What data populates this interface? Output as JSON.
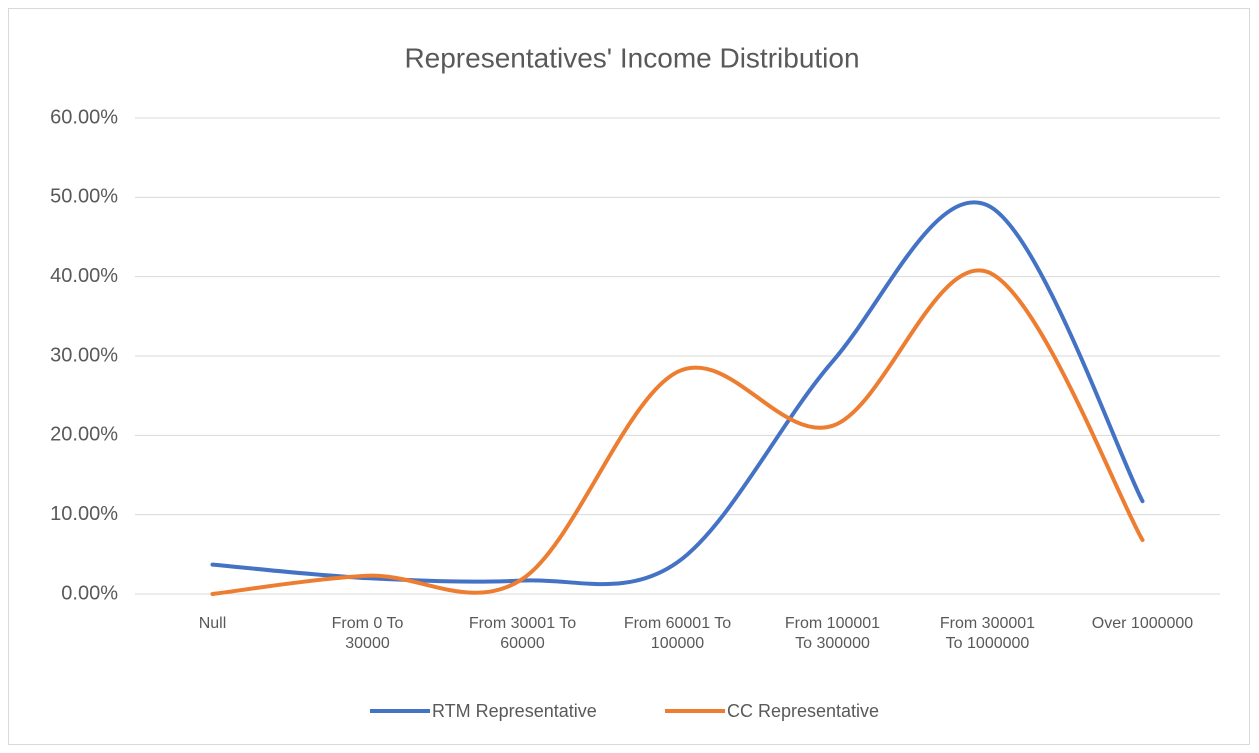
{
  "chart_data": {
    "type": "line",
    "title": "Representatives' Income Distribution",
    "categories": [
      "Null",
      "From 0 To 30000",
      "From 30001 To 60000",
      "From 60001 To 100000",
      "From 100001 To 300000",
      "From 300001 To 1000000",
      "Over 1000000"
    ],
    "series": [
      {
        "name": "RTM Representative",
        "color": "#4472c4",
        "values": [
          3.7,
          2.0,
          1.7,
          4.0,
          29.3,
          49.0,
          11.7
        ]
      },
      {
        "name": "CC Representative",
        "color": "#ed7d31",
        "values": [
          0,
          2.3,
          1.9,
          28.0,
          21.2,
          40.6,
          6.8
        ]
      }
    ],
    "ylim": [
      0,
      60
    ],
    "yticks": [
      {
        "value": 0,
        "label": "0.00%"
      },
      {
        "value": 10,
        "label": "10.00%"
      },
      {
        "value": 20,
        "label": "20.00%"
      },
      {
        "value": 30,
        "label": "30.00%"
      },
      {
        "value": 40,
        "label": "40.00%"
      },
      {
        "value": 50,
        "label": "50.00%"
      },
      {
        "value": 60,
        "label": "60.00%"
      }
    ],
    "grid": true,
    "smooth": true,
    "legend": "bottom"
  }
}
